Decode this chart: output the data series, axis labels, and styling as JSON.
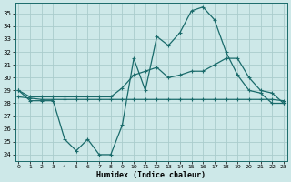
{
  "xlabel": "Humidex (Indice chaleur)",
  "background_color": "#cde8e8",
  "grid_color": "#aacccc",
  "line_color": "#1a6b6b",
  "x_values": [
    0,
    1,
    2,
    3,
    4,
    5,
    6,
    7,
    8,
    9,
    10,
    11,
    12,
    13,
    14,
    15,
    16,
    17,
    18,
    19,
    20,
    21,
    22,
    23
  ],
  "line1": [
    29,
    28.2,
    28.2,
    28.2,
    25.2,
    24.3,
    25.2,
    24.0,
    24.0,
    26.3,
    31.5,
    29.0,
    33.2,
    32.5,
    33.5,
    35.2,
    35.5,
    34.5,
    32.0,
    30.2,
    29.0,
    28.8,
    28.0,
    28.0
  ],
  "line2": [
    29,
    28.5,
    28.5,
    28.5,
    28.5,
    28.5,
    28.5,
    28.5,
    28.5,
    29.2,
    30.2,
    30.5,
    30.8,
    30.0,
    30.2,
    30.5,
    30.5,
    31.0,
    31.5,
    31.5,
    30.0,
    29.0,
    28.8,
    28.0
  ],
  "line3": [
    28.5,
    28.4,
    28.3,
    28.3,
    28.3,
    28.3,
    28.3,
    28.3,
    28.3,
    28.3,
    28.3,
    28.3,
    28.3,
    28.3,
    28.3,
    28.3,
    28.3,
    28.3,
    28.3,
    28.3,
    28.3,
    28.3,
    28.3,
    28.2
  ],
  "ylim": [
    23.5,
    35.8
  ],
  "yticks": [
    24,
    25,
    26,
    27,
    28,
    29,
    30,
    31,
    32,
    33,
    34,
    35
  ],
  "xlim": [
    -0.3,
    23.3
  ],
  "xticks": [
    0,
    1,
    2,
    3,
    4,
    5,
    6,
    7,
    8,
    9,
    10,
    11,
    12,
    13,
    14,
    15,
    16,
    17,
    18,
    19,
    20,
    21,
    22,
    23
  ]
}
